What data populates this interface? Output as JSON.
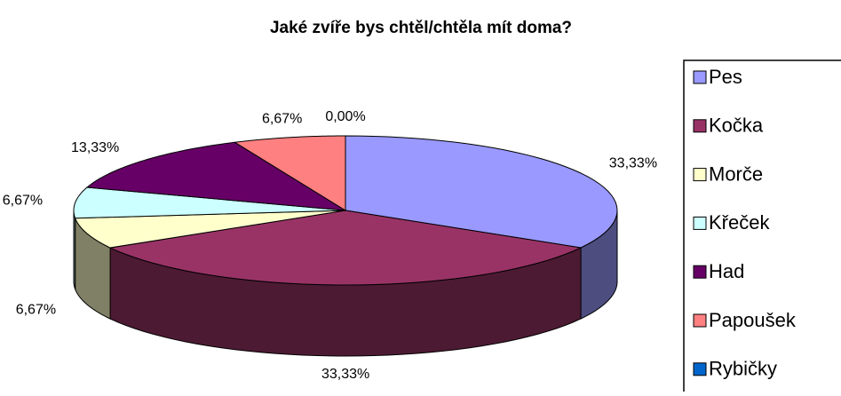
{
  "chart_data": {
    "type": "pie",
    "title": "Jaké zvíře bys chtěl/chtěla mít doma?",
    "categories": [
      "Pes",
      "Kočka",
      "Morče",
      "Křeček",
      "Had",
      "Papoušek",
      "Rybičky"
    ],
    "values": [
      33.33,
      33.33,
      6.67,
      6.67,
      13.33,
      6.67,
      0.0
    ],
    "value_labels": [
      "33,33%",
      "33,33%",
      "6,67%",
      "6,67%",
      "13,33%",
      "6,67%",
      "0,00%"
    ],
    "colors": [
      "#9999ff",
      "#993366",
      "#ffffcc",
      "#ccffff",
      "#660066",
      "#ff8080",
      "#0066cc"
    ],
    "legend": "right"
  }
}
